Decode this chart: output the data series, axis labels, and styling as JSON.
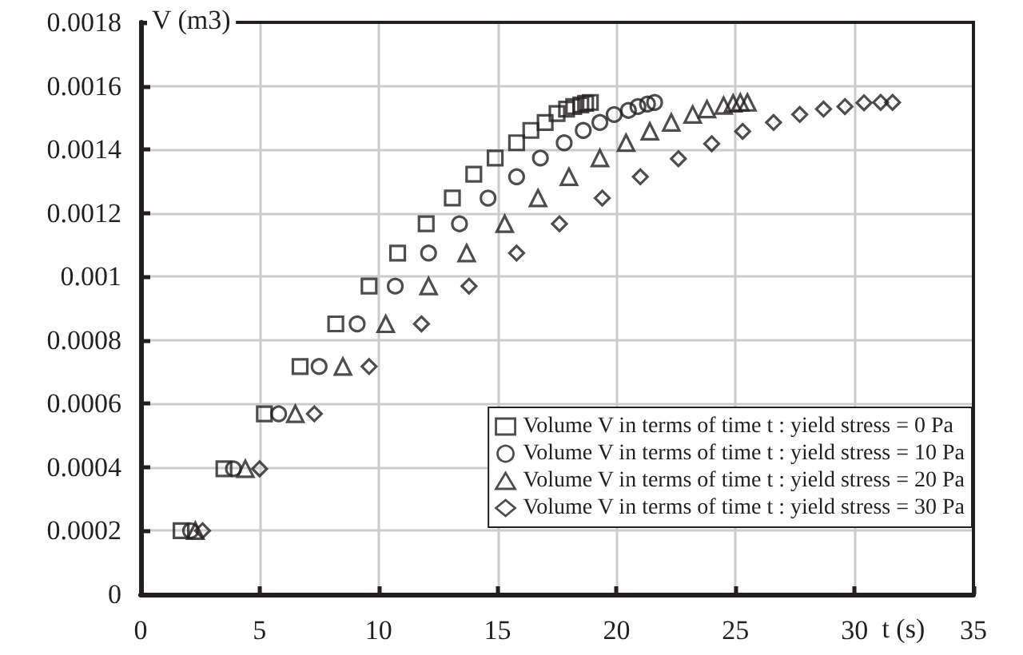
{
  "chart_data": {
    "type": "scatter",
    "xlabel": "t (s)",
    "ylabel": "V (m3)",
    "xlim": [
      0,
      35
    ],
    "xticks": [
      0,
      5,
      10,
      15,
      20,
      25,
      30,
      35
    ],
    "ylim": [
      0,
      0.0018
    ],
    "yticks": [
      0,
      0.0002,
      0.0004,
      0.0006,
      0.0008,
      0.001,
      0.0012,
      0.0014,
      0.0016,
      0.0018
    ],
    "grid": true,
    "legend": "bottom right",
    "series": [
      {
        "name": "Volume V in terms of time t : yield stress = 0 Pa",
        "color": "#231f20",
        "marker": "square",
        "x": [
          1.7,
          3.5,
          5.2,
          6.7,
          8.2,
          9.6,
          10.8,
          12.0,
          13.1,
          14.0,
          14.9,
          15.8,
          16.4,
          17.0,
          17.5,
          17.9,
          18.2,
          18.5,
          18.7,
          18.9
        ],
        "values": [
          0.0002,
          0.000395,
          0.000568,
          0.000717,
          0.000851,
          0.00097,
          0.001074,
          0.001166,
          0.001247,
          0.001322,
          0.001373,
          0.001421,
          0.00146,
          0.001485,
          0.001513,
          0.001527,
          0.001535,
          0.00154,
          0.001545,
          0.001548
        ]
      },
      {
        "name": "Volume V in terms of time t : yield stress = 10 Pa",
        "color": "#231f20",
        "marker": "circle",
        "x": [
          2.1,
          3.9,
          5.8,
          7.5,
          9.1,
          10.7,
          12.1,
          13.4,
          14.6,
          15.8,
          16.8,
          17.8,
          18.6,
          19.3,
          19.9,
          20.5,
          20.9,
          21.3,
          21.6
        ],
        "values": [
          0.0002,
          0.000395,
          0.000568,
          0.000717,
          0.000851,
          0.00097,
          0.001074,
          0.001166,
          0.001247,
          0.001314,
          0.001373,
          0.001421,
          0.00146,
          0.001485,
          0.00151,
          0.001523,
          0.001535,
          0.001543,
          0.001548
        ]
      },
      {
        "name": "Volume V in terms of time t : yield stress = 20 Pa",
        "color": "#231f20",
        "marker": "triangle",
        "x": [
          2.3,
          4.4,
          6.5,
          8.5,
          10.3,
          12.1,
          13.7,
          15.3,
          16.7,
          18.0,
          19.3,
          20.4,
          21.4,
          22.3,
          23.2,
          23.8,
          24.5,
          24.9,
          25.2,
          25.5
        ],
        "values": [
          0.0002,
          0.000395,
          0.000568,
          0.000717,
          0.000851,
          0.00097,
          0.001074,
          0.001166,
          0.001247,
          0.001314,
          0.001373,
          0.001421,
          0.001457,
          0.001485,
          0.00151,
          0.001527,
          0.001538,
          0.001545,
          0.001548,
          0.001548
        ]
      },
      {
        "name": "Volume V in terms of time t : yield stress = 30 Pa",
        "color": "#231f20",
        "marker": "diamond",
        "x": [
          2.6,
          5.0,
          7.3,
          9.6,
          11.8,
          13.8,
          15.8,
          17.6,
          19.4,
          21.0,
          22.6,
          24.0,
          25.3,
          26.6,
          27.7,
          28.7,
          29.6,
          30.4,
          31.1,
          31.6
        ],
        "values": [
          0.0002,
          0.000395,
          0.000568,
          0.000717,
          0.000851,
          0.00097,
          0.001074,
          0.001166,
          0.001247,
          0.001314,
          0.001371,
          0.001418,
          0.001457,
          0.001485,
          0.00151,
          0.001527,
          0.001535,
          0.001547,
          0.001548,
          0.001548
        ]
      }
    ]
  }
}
